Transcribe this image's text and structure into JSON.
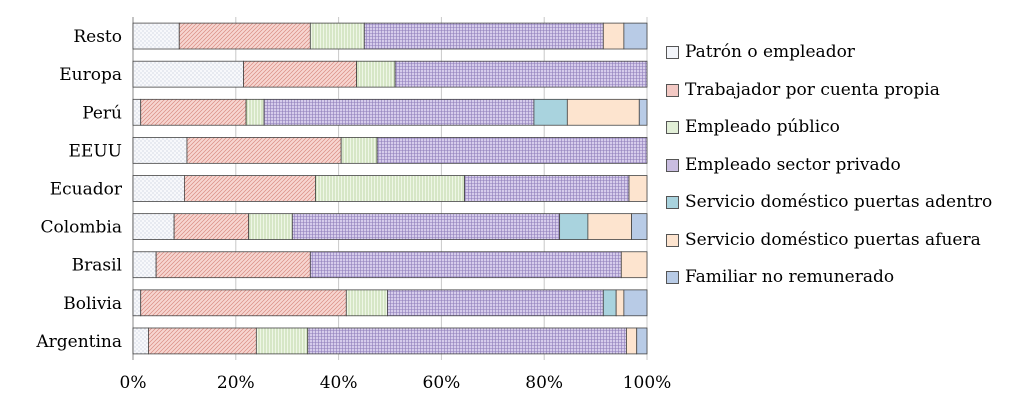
{
  "chart_data": {
    "type": "bar",
    "orientation": "horizontal",
    "stacked": "percent",
    "title": "",
    "xlabel": "",
    "ylabel": "",
    "xlim": [
      0,
      100
    ],
    "x_ticks": [
      "0%",
      "20%",
      "40%",
      "60%",
      "80%",
      "100%"
    ],
    "grid": "vertical",
    "legend_position": "right",
    "categories": [
      "Resto",
      "Europa",
      "Perú",
      "EEUU",
      "Ecuador",
      "Colombia",
      "Brasil",
      "Bolivia",
      "Argentina"
    ],
    "series": [
      {
        "name": "Patrón o empleador",
        "color": "#f3f5fa",
        "pattern": "dots",
        "values": [
          9,
          21.5,
          1.5,
          10.5,
          10,
          8,
          4.5,
          1.5,
          3
        ]
      },
      {
        "name": "Trabajador por cuenta propia",
        "color": "#f3c9c4",
        "pattern": "diagonal",
        "values": [
          25.5,
          22,
          20.5,
          30,
          25.5,
          14.5,
          30,
          40,
          21
        ]
      },
      {
        "name": "Empleado público",
        "color": "#e2efd7",
        "pattern": "vertical",
        "values": [
          10.5,
          7.5,
          3.5,
          7,
          29,
          8.5,
          0,
          8,
          10
        ]
      },
      {
        "name": "Empleado sector privado",
        "color": "#c9bde0",
        "pattern": "grid",
        "values": [
          46.5,
          49,
          52.5,
          52.5,
          32,
          52,
          60.5,
          42,
          62
        ]
      },
      {
        "name": "Servicio doméstico puertas adentro",
        "color": "#a9d3de",
        "pattern": "none",
        "values": [
          0,
          0,
          6.5,
          0,
          0,
          5.5,
          0,
          2.5,
          0
        ]
      },
      {
        "name": "Servicio doméstico puertas afuera",
        "color": "#fde4cf",
        "pattern": "none",
        "values": [
          4,
          0,
          14,
          0,
          3.5,
          8.5,
          5,
          1.5,
          2
        ]
      },
      {
        "name": "Familiar no remunerado",
        "color": "#b8cbe6",
        "pattern": "none",
        "values": [
          4.5,
          0,
          1.5,
          0,
          0,
          3,
          0,
          4.5,
          2
        ]
      }
    ]
  }
}
